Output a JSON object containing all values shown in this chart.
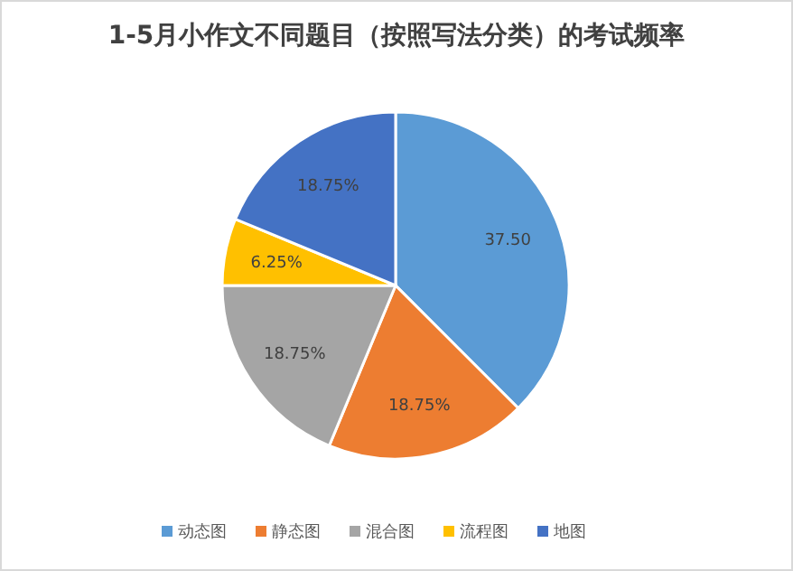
{
  "chart_data": {
    "type": "pie",
    "title": "1-5月小作文不同题目（按照写法分类）的考试频率",
    "categories": [
      "动态图",
      "静态图",
      "混合图",
      "流程图",
      "地图"
    ],
    "values": [
      37.5,
      18.75,
      18.75,
      6.25,
      18.75
    ],
    "colors": [
      "#5b9bd5",
      "#ed7d31",
      "#a5a5a5",
      "#ffc000",
      "#4472c4"
    ],
    "value_labels": [
      "37.50",
      "18.75%",
      "18.75%",
      "6.25%",
      "18.75%"
    ],
    "legend": "bottom"
  }
}
